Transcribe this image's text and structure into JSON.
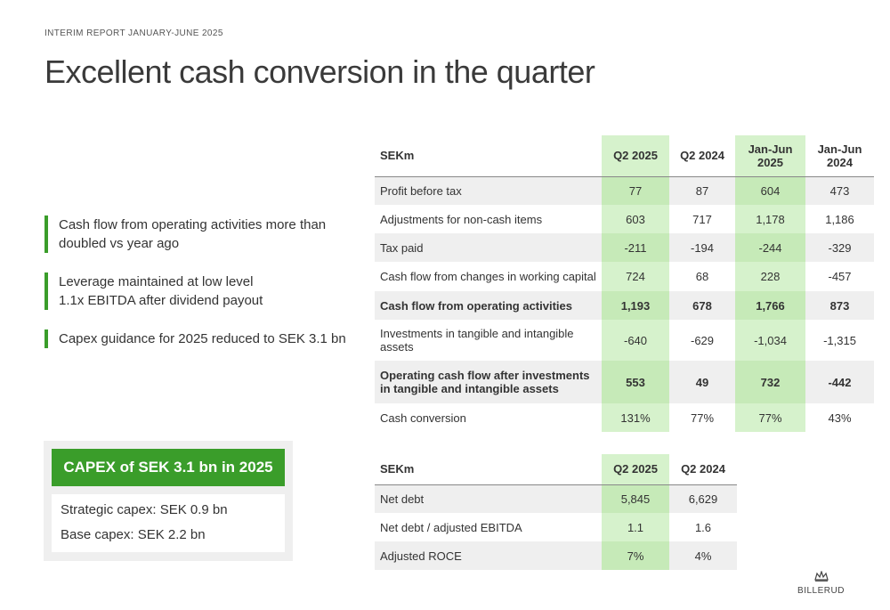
{
  "header": {
    "eyebrow": "INTERIM REPORT JANUARY-JUNE 2025",
    "title": "Excellent cash conversion in the quarter"
  },
  "bullets": [
    "Cash flow from operating activities more than doubled vs year ago",
    "Leverage maintained at low level\n1.1x EBITDA after dividend payout",
    "Capex guidance for 2025 reduced to SEK 3.1 bn"
  ],
  "capex": {
    "heading": "CAPEX of SEK 3.1 bn in 2025",
    "lines": [
      "Strategic capex: SEK 0.9 bn",
      "Base capex: SEK 2.2 bn"
    ]
  },
  "cash_flow_table": {
    "columns": [
      "SEKm",
      "Q2 2025",
      "Q2 2024",
      "Jan-Jun 2025",
      "Jan-Jun 2024"
    ],
    "rows": [
      {
        "label": "Profit before tax",
        "values": [
          "77",
          "87",
          "604",
          "473"
        ]
      },
      {
        "label": "Adjustments for non-cash items",
        "values": [
          "603",
          "717",
          "1,178",
          "1,186"
        ]
      },
      {
        "label": "Tax paid",
        "values": [
          "-211",
          "-194",
          "-244",
          "-329"
        ]
      },
      {
        "label": "Cash flow from changes in working capital",
        "values": [
          "724",
          "68",
          "228",
          "-457"
        ]
      },
      {
        "label": "Cash flow from operating activities",
        "values": [
          "1,193",
          "678",
          "1,766",
          "873"
        ]
      },
      {
        "label": "Investments in tangible and intangible assets",
        "values": [
          "-640",
          "-629",
          "-1,034",
          "-1,315"
        ]
      },
      {
        "label": "Operating cash flow after investments in tangible and intangible assets",
        "values": [
          "553",
          "49",
          "732",
          "-442"
        ]
      },
      {
        "label": "Cash conversion",
        "values": [
          "131%",
          "77%",
          "77%",
          "43%"
        ]
      }
    ]
  },
  "debt_table": {
    "columns": [
      "SEKm",
      "Q2 2025",
      "Q2 2024"
    ],
    "rows": [
      {
        "label": "Net debt",
        "values": [
          "5,845",
          "6,629"
        ]
      },
      {
        "label": "Net debt / adjusted EBITDA",
        "values": [
          "1.1",
          "1.6"
        ]
      },
      {
        "label": "Adjusted ROCE",
        "values": [
          "7%",
          "4%"
        ]
      }
    ]
  },
  "logo": {
    "text": "BILLERUD"
  },
  "colors": {
    "accent": "#3a9d2a",
    "highlight": "#d6f2cc"
  }
}
